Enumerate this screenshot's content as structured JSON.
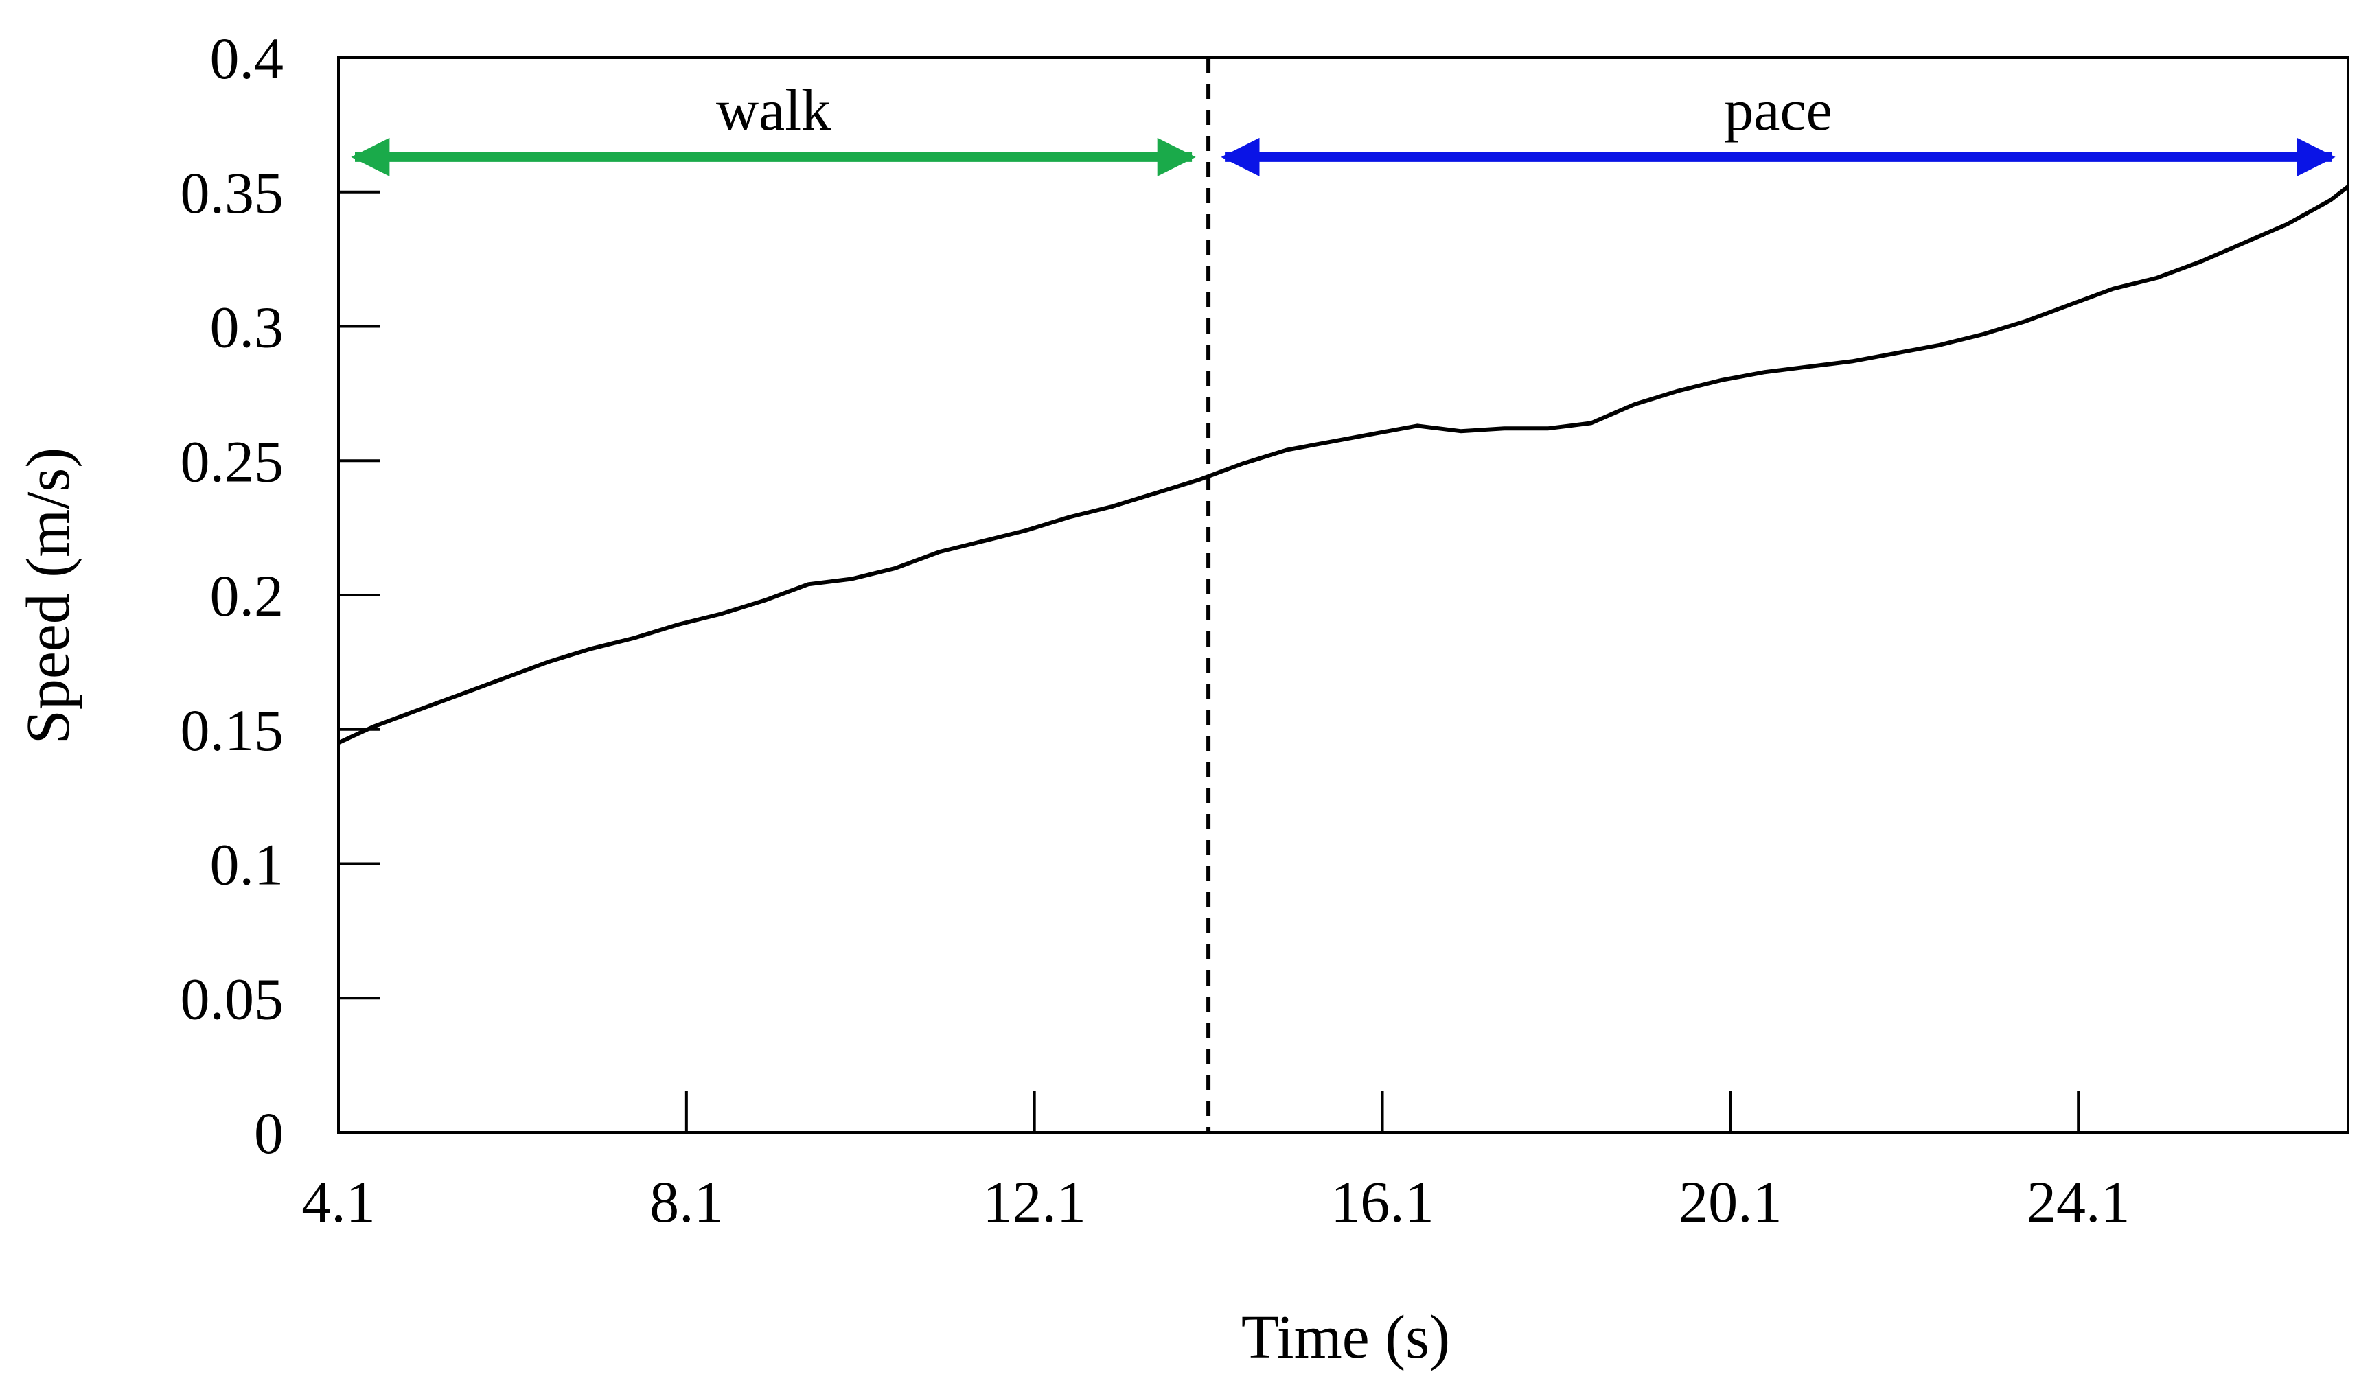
{
  "chart_data": {
    "type": "line",
    "title": "",
    "xlabel": "Time (s)",
    "ylabel": "Speed (m/s)",
    "xlim": [
      4.1,
      27.2
    ],
    "ylim": [
      0,
      0.4
    ],
    "grid": false,
    "x_tick_labels": [
      "4.1",
      "8.1",
      "12.1",
      "16.1",
      "20.1",
      "24.1"
    ],
    "y_tick_labels": [
      "0",
      "0.05",
      "0.1",
      "0.15",
      "0.2",
      "0.25",
      "0.3",
      "0.35",
      "0.4"
    ],
    "colors": {
      "line": "#000000",
      "walk": "#1aaa4a",
      "pace": "#0a14e6",
      "divider": "#000000"
    },
    "annotations": {
      "divider_x": 14.1,
      "arrow_y": 0.363,
      "phases": [
        {
          "label": "walk",
          "x_start": 4.1,
          "x_end": 14.1
        },
        {
          "label": "pace",
          "x_start": 14.1,
          "x_end": 27.2
        }
      ]
    },
    "series": [
      {
        "x": [
          4.1,
          4.5,
          5.0,
          5.5,
          6.0,
          6.5,
          7.0,
          7.5,
          8.0,
          8.5,
          9.0,
          9.5,
          10.0,
          10.5,
          11.0,
          11.5,
          12.0,
          12.5,
          13.0,
          13.5,
          14.0,
          14.5,
          15.0,
          15.5,
          16.0,
          16.5,
          17.0,
          17.5,
          18.0,
          18.5,
          19.0,
          19.5,
          20.0,
          20.5,
          21.0,
          21.5,
          22.0,
          22.5,
          23.0,
          23.5,
          24.0,
          24.5,
          25.0,
          25.5,
          26.0,
          26.5,
          27.0,
          27.2
        ],
        "y": [
          0.145,
          0.151,
          0.157,
          0.163,
          0.169,
          0.175,
          0.18,
          0.184,
          0.189,
          0.193,
          0.198,
          0.204,
          0.206,
          0.21,
          0.216,
          0.22,
          0.224,
          0.229,
          0.233,
          0.238,
          0.243,
          0.249,
          0.254,
          0.257,
          0.26,
          0.263,
          0.261,
          0.262,
          0.262,
          0.264,
          0.271,
          0.276,
          0.28,
          0.283,
          0.285,
          0.287,
          0.29,
          0.293,
          0.297,
          0.302,
          0.308,
          0.314,
          0.318,
          0.324,
          0.331,
          0.338,
          0.347,
          0.352
        ]
      }
    ]
  }
}
